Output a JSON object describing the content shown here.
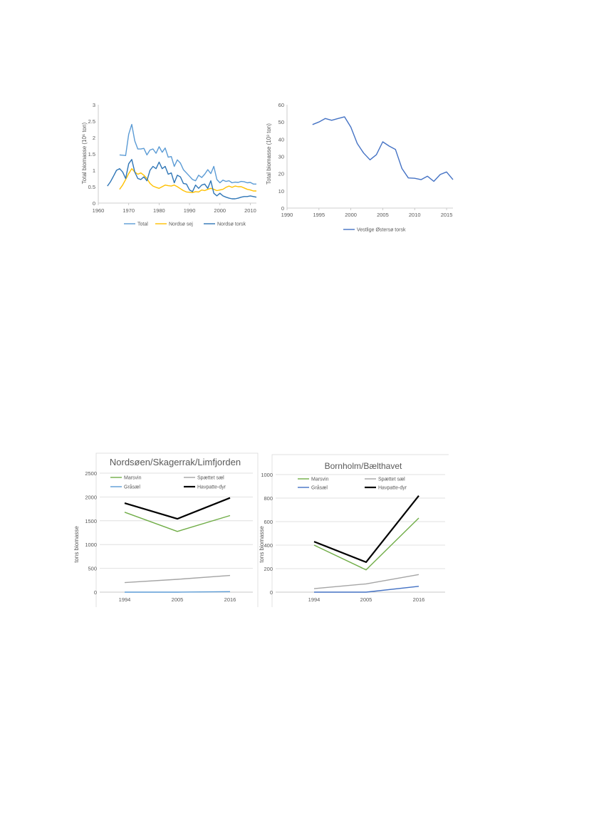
{
  "chart_data": [
    {
      "type": "line",
      "ylabel": "Total biomasse (10⁶ ton)",
      "xlim": [
        1960,
        2012
      ],
      "ylim": [
        0,
        3
      ],
      "xticks": [
        1960,
        1970,
        1980,
        1990,
        2000,
        2010
      ],
      "yticks": [
        0,
        0.5,
        1,
        1.5,
        2,
        2.5,
        3
      ],
      "ytick_labels": [
        "0",
        "0.5",
        "1",
        "1.5",
        "2",
        "2.5",
        "3"
      ],
      "grid": false,
      "legend_position": "bottom",
      "series": [
        {
          "name": "Total",
          "color": "#5b9bd5",
          "x": [
            1967,
            1968,
            1969,
            1970,
            1971,
            1972,
            1973,
            1974,
            1975,
            1976,
            1977,
            1978,
            1979,
            1980,
            1981,
            1982,
            1983,
            1984,
            1985,
            1986,
            1987,
            1988,
            1989,
            1990,
            1991,
            1992,
            1993,
            1994,
            1995,
            1996,
            1997,
            1998,
            1999,
            2000,
            2001,
            2002,
            2003,
            2004,
            2005,
            2006,
            2007,
            2008,
            2009,
            2010,
            2011,
            2012
          ],
          "y": [
            1.47,
            1.46,
            1.45,
            2.1,
            2.4,
            1.9,
            1.65,
            1.65,
            1.67,
            1.47,
            1.62,
            1.65,
            1.52,
            1.72,
            1.55,
            1.68,
            1.4,
            1.42,
            1.12,
            1.32,
            1.22,
            1.02,
            0.92,
            0.82,
            0.72,
            0.68,
            0.85,
            0.78,
            0.88,
            1.02,
            0.9,
            1.12,
            0.72,
            0.62,
            0.7,
            0.66,
            0.68,
            0.62,
            0.64,
            0.63,
            0.66,
            0.65,
            0.62,
            0.63,
            0.58,
            0.58
          ]
        },
        {
          "name": "Nordsø sej",
          "color": "#ffc000",
          "x": [
            1967,
            1968,
            1969,
            1970,
            1971,
            1972,
            1973,
            1974,
            1975,
            1976,
            1977,
            1978,
            1979,
            1980,
            1981,
            1982,
            1983,
            1984,
            1985,
            1986,
            1987,
            1988,
            1989,
            1990,
            1991,
            1992,
            1993,
            1994,
            1995,
            1996,
            1997,
            1998,
            1999,
            2000,
            2001,
            2002,
            2003,
            2004,
            2005,
            2006,
            2007,
            2008,
            2009,
            2010,
            2011,
            2012
          ],
          "y": [
            0.42,
            0.55,
            0.72,
            0.9,
            1.05,
            0.95,
            0.88,
            0.92,
            0.85,
            0.75,
            0.6,
            0.52,
            0.48,
            0.45,
            0.5,
            0.55,
            0.53,
            0.52,
            0.55,
            0.5,
            0.44,
            0.38,
            0.34,
            0.33,
            0.32,
            0.35,
            0.34,
            0.4,
            0.38,
            0.42,
            0.45,
            0.42,
            0.38,
            0.4,
            0.42,
            0.48,
            0.52,
            0.48,
            0.52,
            0.5,
            0.5,
            0.46,
            0.42,
            0.4,
            0.37,
            0.37
          ]
        },
        {
          "name": "Nordsø torsk",
          "color": "#2e75b6",
          "x": [
            1963,
            1964,
            1965,
            1966,
            1967,
            1968,
            1969,
            1970,
            1971,
            1972,
            1973,
            1974,
            1975,
            1976,
            1977,
            1978,
            1979,
            1980,
            1981,
            1982,
            1983,
            1984,
            1985,
            1986,
            1987,
            1988,
            1989,
            1990,
            1991,
            1992,
            1993,
            1994,
            1995,
            1996,
            1997,
            1998,
            1999,
            2000,
            2001,
            2002,
            2003,
            2004,
            2005,
            2006,
            2007,
            2008,
            2009,
            2010,
            2011,
            2012
          ],
          "y": [
            0.52,
            0.65,
            0.82,
            1.0,
            1.05,
            0.95,
            0.75,
            1.2,
            1.33,
            0.95,
            0.75,
            0.72,
            0.8,
            0.68,
            1.0,
            1.12,
            1.05,
            1.25,
            1.05,
            1.12,
            0.88,
            0.92,
            0.62,
            0.85,
            0.8,
            0.6,
            0.58,
            0.4,
            0.35,
            0.55,
            0.45,
            0.55,
            0.58,
            0.45,
            0.68,
            0.3,
            0.22,
            0.3,
            0.22,
            0.18,
            0.15,
            0.13,
            0.13,
            0.15,
            0.18,
            0.2,
            0.2,
            0.22,
            0.2,
            0.18
          ]
        }
      ]
    },
    {
      "type": "line",
      "ylabel": "Total biomasse (10³ ton)",
      "xlim": [
        1990,
        2016
      ],
      "ylim": [
        0,
        60
      ],
      "xticks": [
        1990,
        1995,
        2000,
        2005,
        2010,
        2015
      ],
      "yticks": [
        0,
        10,
        20,
        30,
        40,
        50,
        60
      ],
      "ytick_labels": [
        "0",
        "10",
        "20",
        "30",
        "40",
        "50",
        "60"
      ],
      "grid": false,
      "legend_position": "bottom",
      "series": [
        {
          "name": "Vestlige Østersø torsk",
          "color": "#4472c4",
          "x": [
            1994,
            1995,
            1996,
            1997,
            1998,
            1999,
            2000,
            2001,
            2002,
            2003,
            2004,
            2005,
            2006,
            2007,
            2008,
            2009,
            2010,
            2011,
            2012,
            2013,
            2014,
            2015,
            2016
          ],
          "y": [
            48.5,
            50,
            52,
            51,
            52,
            53,
            47,
            37.5,
            32,
            28,
            31,
            38.5,
            36,
            34,
            23,
            17.5,
            17.3,
            16.5,
            18.5,
            15.5,
            19.5,
            21,
            16.5
          ]
        }
      ]
    },
    {
      "type": "line",
      "title": "Nordsøen/Skagerrak/Limfjorden",
      "ylabel": "tons biomasse",
      "categories": [
        "1994",
        "2005",
        "2016"
      ],
      "ylim": [
        0,
        2500
      ],
      "yticks": [
        0,
        500,
        1000,
        1500,
        2000,
        2500
      ],
      "ytick_labels": [
        "0",
        "500",
        "1000",
        "1500",
        "2000",
        "2500"
      ],
      "grid": true,
      "legend_position": "top",
      "series": [
        {
          "name": "Marsvin",
          "color": "#70ad47",
          "values": [
            1680,
            1275,
            1610
          ]
        },
        {
          "name": "Spættet sæl",
          "color": "#a5a5a5",
          "values": [
            200,
            270,
            350
          ]
        },
        {
          "name": "Gråsæl",
          "color": "#5b9bd5",
          "values": [
            0,
            0,
            10
          ]
        },
        {
          "name": "Havpatte-dyr",
          "color": "#000000",
          "values": [
            1870,
            1540,
            1980
          ]
        }
      ]
    },
    {
      "type": "line",
      "title": "Bornholm/Bælthavet",
      "ylabel": "tons biomasse",
      "categories": [
        "1994",
        "2005",
        "2016"
      ],
      "ylim": [
        0,
        1000
      ],
      "yticks": [
        0,
        200,
        400,
        600,
        800,
        1000
      ],
      "ytick_labels": [
        "0",
        "200",
        "400",
        "600",
        "800",
        "1000"
      ],
      "grid": true,
      "legend_position": "top",
      "series": [
        {
          "name": "Marsvin",
          "color": "#70ad47",
          "values": [
            400,
            190,
            630
          ]
        },
        {
          "name": "Spættet sæl",
          "color": "#a5a5a5",
          "values": [
            30,
            70,
            150
          ]
        },
        {
          "name": "Gråsæl",
          "color": "#4472c4",
          "values": [
            0,
            0,
            50
          ]
        },
        {
          "name": "Havpatte-dyr",
          "color": "#000000",
          "values": [
            430,
            255,
            820
          ]
        }
      ]
    }
  ]
}
